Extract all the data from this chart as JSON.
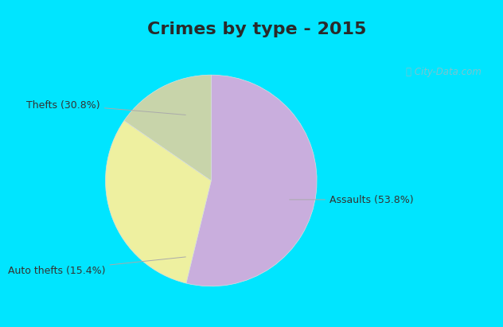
{
  "title": "Crimes by type - 2015",
  "slices": [
    {
      "label": "Assaults (53.8%)",
      "value": 53.8,
      "color": "#c9aedd"
    },
    {
      "label": "Thefts (30.8%)",
      "value": 30.8,
      "color": "#eef0a0"
    },
    {
      "label": "Auto thefts (15.4%)",
      "value": 15.4,
      "color": "#c8d4aa"
    }
  ],
  "title_fontsize": 16,
  "label_fontsize": 9,
  "watermark": "ⓘ City-Data.com",
  "title_bg": "#00e5ff",
  "chart_bg_top": "#c8eee8",
  "chart_bg_bottom": "#b8e8d8",
  "border_color": "#00e5ff",
  "title_color": "#2a2a2a",
  "label_color": "#333333"
}
